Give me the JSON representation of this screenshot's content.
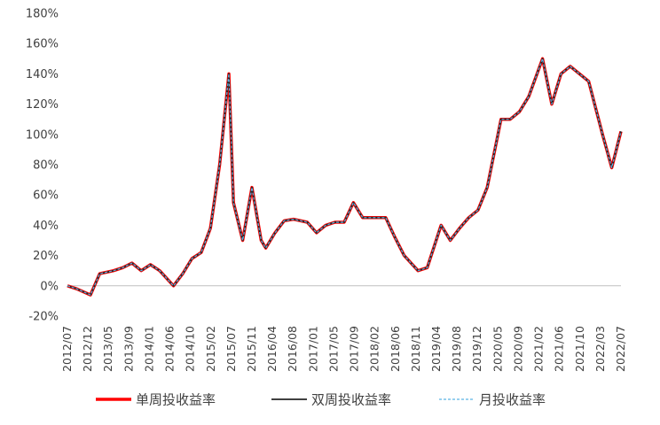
{
  "chart_data": {
    "type": "line",
    "title": "",
    "xlabel": "",
    "ylabel": "",
    "ylim": [
      -20,
      180
    ],
    "yticks": [
      "-20%",
      "0%",
      "20%",
      "40%",
      "60%",
      "80%",
      "100%",
      "120%",
      "140%",
      "160%",
      "180%"
    ],
    "xticks": [
      "2012/07",
      "2012/12",
      "2013/05",
      "2013/09",
      "2014/01",
      "2014/06",
      "2014/10",
      "2015/02",
      "2015/07",
      "2015/11",
      "2016/04",
      "2016/08",
      "2017/01",
      "2017/05",
      "2017/09",
      "2018/02",
      "2018/06",
      "2018/11",
      "2019/04",
      "2019/08",
      "2019/12",
      "2020/05",
      "2020/09",
      "2021/02",
      "2021/06",
      "2021/10",
      "2022/03",
      "2022/07"
    ],
    "grid": false,
    "legend_position": "bottom",
    "x": [
      "2012/07",
      "2012/09",
      "2012/12",
      "2013/02",
      "2013/05",
      "2013/07",
      "2013/09",
      "2013/11",
      "2014/01",
      "2014/03",
      "2014/06",
      "2014/08",
      "2014/10",
      "2014/12",
      "2015/02",
      "2015/04",
      "2015/06",
      "2015/07",
      "2015/09",
      "2015/11",
      "2016/01",
      "2016/02",
      "2016/04",
      "2016/06",
      "2016/08",
      "2016/11",
      "2017/01",
      "2017/03",
      "2017/05",
      "2017/07",
      "2017/09",
      "2017/11",
      "2018/02",
      "2018/04",
      "2018/06",
      "2018/08",
      "2018/11",
      "2019/01",
      "2019/04",
      "2019/06",
      "2019/08",
      "2019/10",
      "2019/12",
      "2020/02",
      "2020/05",
      "2020/07",
      "2020/09",
      "2020/11",
      "2021/02",
      "2021/04",
      "2021/06",
      "2021/08",
      "2021/10",
      "2021/12",
      "2022/03",
      "2022/05",
      "2022/07"
    ],
    "series": [
      {
        "name": "单周投收益率",
        "color": "#ff0000",
        "values": [
          0,
          -2,
          -6,
          8,
          10,
          12,
          15,
          10,
          14,
          10,
          0,
          8,
          18,
          22,
          38,
          80,
          140,
          55,
          30,
          65,
          30,
          25,
          35,
          43,
          44,
          42,
          35,
          40,
          42,
          42,
          55,
          45,
          45,
          45,
          32,
          20,
          10,
          12,
          40,
          30,
          38,
          45,
          50,
          65,
          110,
          110,
          115,
          125,
          150,
          120,
          140,
          145,
          140,
          135,
          100,
          78,
          102
        ]
      },
      {
        "name": "双周投收益率",
        "color": "#262626",
        "values": [
          0,
          -2,
          -6,
          8,
          10,
          12,
          15,
          10,
          14,
          10,
          0,
          8,
          18,
          22,
          38,
          80,
          140,
          55,
          30,
          65,
          30,
          25,
          35,
          43,
          44,
          42,
          35,
          40,
          42,
          42,
          55,
          45,
          45,
          45,
          32,
          20,
          10,
          12,
          40,
          30,
          38,
          45,
          50,
          65,
          110,
          110,
          115,
          125,
          150,
          120,
          140,
          145,
          140,
          135,
          100,
          78,
          102
        ]
      },
      {
        "name": "月投收益率",
        "color": "#5ab4e5",
        "values": [
          0,
          -2,
          -6,
          8,
          10,
          12,
          15,
          10,
          14,
          10,
          0,
          8,
          18,
          22,
          38,
          80,
          140,
          55,
          30,
          65,
          30,
          25,
          35,
          43,
          44,
          42,
          35,
          40,
          42,
          42,
          55,
          45,
          45,
          45,
          32,
          20,
          10,
          12,
          40,
          30,
          38,
          45,
          50,
          65,
          110,
          110,
          115,
          125,
          150,
          120,
          140,
          145,
          140,
          135,
          100,
          78,
          102
        ]
      }
    ]
  }
}
